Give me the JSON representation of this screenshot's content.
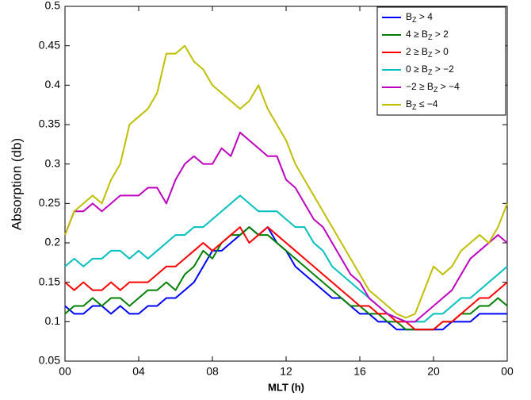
{
  "chart_data": {
    "type": "line",
    "xlabel": "MLT (h)",
    "ylabel": "Absorption (db)",
    "x": [
      0,
      0.5,
      1,
      1.5,
      2,
      2.5,
      3,
      3.5,
      4,
      4.5,
      5,
      5.5,
      6,
      6.5,
      7,
      7.5,
      8,
      8.5,
      9,
      9.5,
      10,
      10.5,
      11,
      11.5,
      12,
      12.5,
      13,
      13.5,
      14,
      14.5,
      15,
      15.5,
      16,
      16.5,
      17,
      17.5,
      18,
      18.5,
      19,
      19.5,
      20,
      20.5,
      21,
      21.5,
      22,
      22.5,
      23,
      23.5,
      24
    ],
    "xlim": [
      0,
      24
    ],
    "xticks": [
      {
        "value": 0,
        "label": "00"
      },
      {
        "value": 4,
        "label": "04"
      },
      {
        "value": 8,
        "label": "08"
      },
      12,
      16,
      20,
      {
        "value": 24,
        "label": "00"
      }
    ],
    "ylim": [
      0.05,
      0.5
    ],
    "yticks": [
      0.05,
      0.1,
      0.15,
      0.2,
      0.25,
      0.3,
      0.35,
      0.4,
      0.45,
      0.5
    ],
    "grid": false,
    "legend": "upper right",
    "series": [
      {
        "name": "BZ > 4",
        "color": "#0000ff",
        "values": [
          0.12,
          0.11,
          0.11,
          0.12,
          0.12,
          0.11,
          0.12,
          0.11,
          0.11,
          0.12,
          0.12,
          0.13,
          0.13,
          0.14,
          0.15,
          0.17,
          0.19,
          0.19,
          0.2,
          0.21,
          0.22,
          0.21,
          0.22,
          0.2,
          0.19,
          0.17,
          0.16,
          0.15,
          0.14,
          0.13,
          0.13,
          0.12,
          0.11,
          0.11,
          0.1,
          0.1,
          0.09,
          0.09,
          0.09,
          0.09,
          0.09,
          0.09,
          0.1,
          0.1,
          0.1,
          0.11,
          0.11,
          0.11,
          0.11
        ]
      },
      {
        "name": "4 ≥ BZ > 2",
        "color": "#008000",
        "values": [
          0.11,
          0.12,
          0.12,
          0.13,
          0.12,
          0.13,
          0.13,
          0.12,
          0.13,
          0.14,
          0.14,
          0.15,
          0.14,
          0.16,
          0.17,
          0.19,
          0.18,
          0.2,
          0.21,
          0.21,
          0.22,
          0.21,
          0.21,
          0.2,
          0.19,
          0.18,
          0.17,
          0.16,
          0.15,
          0.14,
          0.13,
          0.12,
          0.12,
          0.11,
          0.11,
          0.1,
          0.1,
          0.09,
          0.09,
          0.09,
          0.09,
          0.1,
          0.1,
          0.11,
          0.11,
          0.12,
          0.12,
          0.13,
          0.12
        ]
      },
      {
        "name": "2 ≥ BZ > 0",
        "color": "#ff0000",
        "values": [
          0.15,
          0.14,
          0.15,
          0.14,
          0.14,
          0.15,
          0.14,
          0.15,
          0.15,
          0.15,
          0.16,
          0.17,
          0.17,
          0.18,
          0.19,
          0.2,
          0.19,
          0.2,
          0.21,
          0.22,
          0.2,
          0.21,
          0.22,
          0.21,
          0.2,
          0.19,
          0.18,
          0.17,
          0.16,
          0.15,
          0.14,
          0.13,
          0.12,
          0.12,
          0.11,
          0.11,
          0.1,
          0.1,
          0.09,
          0.09,
          0.09,
          0.1,
          0.1,
          0.11,
          0.12,
          0.13,
          0.13,
          0.14,
          0.15
        ]
      },
      {
        "name": "0 ≥ BZ > −2",
        "color": "#00bfbf",
        "values": [
          0.17,
          0.18,
          0.17,
          0.18,
          0.18,
          0.19,
          0.19,
          0.18,
          0.19,
          0.18,
          0.19,
          0.2,
          0.21,
          0.21,
          0.22,
          0.22,
          0.23,
          0.24,
          0.25,
          0.26,
          0.25,
          0.24,
          0.24,
          0.24,
          0.23,
          0.22,
          0.22,
          0.2,
          0.19,
          0.17,
          0.16,
          0.15,
          0.14,
          0.13,
          0.12,
          0.11,
          0.105,
          0.1,
          0.1,
          0.1,
          0.11,
          0.11,
          0.12,
          0.13,
          0.13,
          0.14,
          0.15,
          0.16,
          0.17
        ]
      },
      {
        "name": "−2 ≥ BZ > −4",
        "color": "#bf00bf",
        "values": [
          0.21,
          0.24,
          0.24,
          0.25,
          0.24,
          0.25,
          0.26,
          0.26,
          0.26,
          0.27,
          0.27,
          0.25,
          0.28,
          0.3,
          0.31,
          0.3,
          0.3,
          0.32,
          0.31,
          0.34,
          0.33,
          0.32,
          0.31,
          0.31,
          0.28,
          0.27,
          0.25,
          0.23,
          0.22,
          0.2,
          0.18,
          0.16,
          0.15,
          0.13,
          0.12,
          0.11,
          0.105,
          0.1,
          0.1,
          0.11,
          0.12,
          0.13,
          0.14,
          0.16,
          0.18,
          0.19,
          0.2,
          0.21,
          0.2
        ]
      },
      {
        "name": "BZ ≤ −4",
        "color": "#bfbf00",
        "values": [
          0.21,
          0.24,
          0.25,
          0.26,
          0.25,
          0.28,
          0.3,
          0.35,
          0.36,
          0.37,
          0.39,
          0.44,
          0.44,
          0.45,
          0.43,
          0.42,
          0.4,
          0.39,
          0.38,
          0.37,
          0.38,
          0.4,
          0.37,
          0.35,
          0.33,
          0.3,
          0.28,
          0.26,
          0.24,
          0.22,
          0.2,
          0.18,
          0.16,
          0.14,
          0.13,
          0.12,
          0.11,
          0.105,
          0.11,
          0.14,
          0.17,
          0.16,
          0.17,
          0.19,
          0.2,
          0.21,
          0.2,
          0.22,
          0.25
        ]
      }
    ]
  }
}
